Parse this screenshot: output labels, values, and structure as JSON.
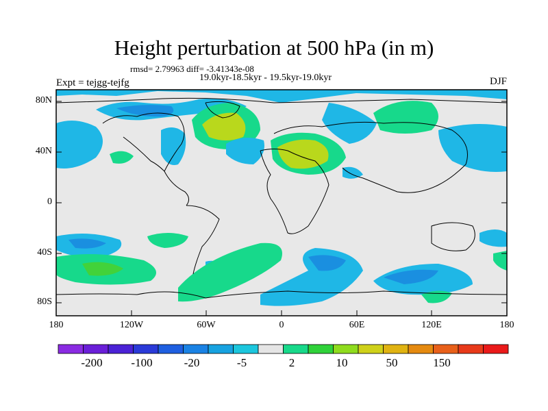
{
  "title": "Height perturbation at 500 hPa (in m)",
  "stats": "rmsd= 2.79963 diff= -3.41343e-08",
  "period": "19.0kyr-18.5kyr - 19.5kyr-19.0kyr",
  "experiment": "Expt = tejgg-tejfg",
  "season": "DJF",
  "lat_ticks": [
    "80N",
    "40N",
    "0",
    "40S",
    "80S"
  ],
  "lon_ticks": [
    "180",
    "120W",
    "60W",
    "0",
    "60E",
    "120E",
    "180"
  ],
  "colorbar": {
    "labels": [
      "-200",
      "-100",
      "-20",
      "-5",
      "2",
      "10",
      "50",
      "150"
    ],
    "colors": [
      "#8a2be2",
      "#6a1fd8",
      "#4b22d6",
      "#2a3ad8",
      "#1f5fe0",
      "#1a82e4",
      "#17a2e0",
      "#1cc6dd",
      "#e5e5e5",
      "#18d98a",
      "#2fd23a",
      "#8fdc1e",
      "#cfd11a",
      "#e0b312",
      "#e58a10",
      "#e8601a",
      "#e83a1a",
      "#ea1a1a"
    ]
  },
  "colors": {
    "background": "#e8e8e8",
    "light_blue": "#1fb7e6",
    "mid_blue": "#1a8fe0",
    "light_green": "#17d98b",
    "green": "#42d23a",
    "yellow_green": "#b9d81c"
  }
}
